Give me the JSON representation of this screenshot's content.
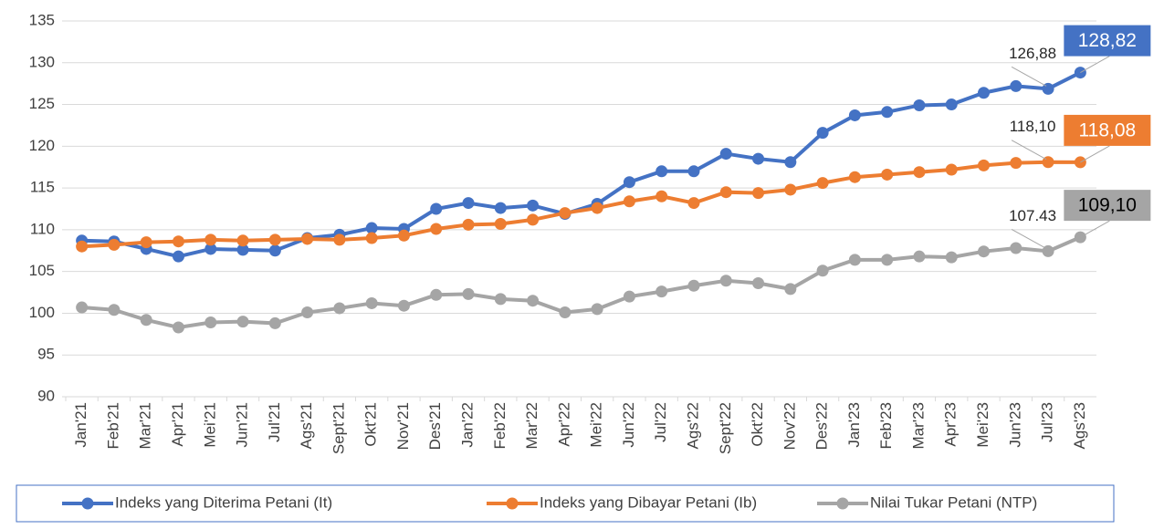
{
  "chart_data": {
    "type": "line",
    "categories": [
      "Jan'21",
      "Feb'21",
      "Mar'21",
      "Apr'21",
      "Mei'21",
      "Jun'21",
      "Jul'21",
      "Ags'21",
      "Sept'21",
      "Okt'21",
      "Nov'21",
      "Des'21",
      "Jan'22",
      "Feb'22",
      "Mar'22",
      "Apr'22",
      "Mei'22",
      "Jun'22",
      "Jul'22",
      "Ags'22",
      "Sept'22",
      "Okt'22",
      "Nov'22",
      "Des'22",
      "Jan'23",
      "Feb'23",
      "Mar'23",
      "Apr'23",
      "Mei'23",
      "Jun'23",
      "Jul'23",
      "Ags'23"
    ],
    "series": [
      {
        "name": "Indeks yang Diterima Petani (It)",
        "color": "#4472c4",
        "values": [
          108.7,
          108.6,
          107.7,
          106.8,
          107.7,
          107.6,
          107.5,
          109.0,
          109.4,
          110.2,
          110.1,
          112.5,
          113.2,
          112.6,
          112.9,
          111.9,
          113.1,
          115.7,
          117.0,
          117.0,
          119.1,
          118.5,
          118.1,
          121.6,
          123.7,
          124.1,
          124.9,
          125.0,
          126.4,
          127.2,
          126.88,
          128.82
        ],
        "value_labels": [
          null,
          null,
          null,
          null,
          null,
          null,
          null,
          null,
          null,
          null,
          null,
          null,
          null,
          null,
          null,
          null,
          null,
          null,
          null,
          null,
          null,
          null,
          null,
          null,
          null,
          null,
          null,
          null,
          null,
          null,
          "126,88",
          "128,82"
        ]
      },
      {
        "name": "Indeks yang Dibayar Petani (Ib)",
        "color": "#ed7d31",
        "values": [
          108.0,
          108.2,
          108.5,
          108.6,
          108.8,
          108.7,
          108.8,
          108.9,
          108.8,
          109.0,
          109.3,
          110.1,
          110.6,
          110.7,
          111.2,
          112.0,
          112.6,
          113.4,
          114.0,
          113.2,
          114.5,
          114.4,
          114.8,
          115.6,
          116.3,
          116.6,
          116.9,
          117.2,
          117.7,
          118.0,
          118.1,
          118.08
        ],
        "value_labels": [
          null,
          null,
          null,
          null,
          null,
          null,
          null,
          null,
          null,
          null,
          null,
          null,
          null,
          null,
          null,
          null,
          null,
          null,
          null,
          null,
          null,
          null,
          null,
          null,
          null,
          null,
          null,
          null,
          null,
          null,
          "118,10",
          "118,08"
        ]
      },
      {
        "name": "Nilai Tukar Petani (NTP)",
        "color": "#a5a5a5",
        "values": [
          100.7,
          100.4,
          99.2,
          98.3,
          98.9,
          99.0,
          98.8,
          100.1,
          100.6,
          101.2,
          100.9,
          102.2,
          102.3,
          101.7,
          101.5,
          100.1,
          100.5,
          102.0,
          102.6,
          103.3,
          103.9,
          103.6,
          102.9,
          105.1,
          106.4,
          106.4,
          106.8,
          106.7,
          107.4,
          107.8,
          107.43,
          109.1
        ],
        "value_labels": [
          null,
          null,
          null,
          null,
          null,
          null,
          null,
          null,
          null,
          null,
          null,
          null,
          null,
          null,
          null,
          null,
          null,
          null,
          null,
          null,
          null,
          null,
          null,
          null,
          null,
          null,
          null,
          null,
          null,
          null,
          "107.43",
          "109,10"
        ]
      }
    ],
    "ylim": [
      90,
      135
    ],
    "yticks": [
      90,
      95,
      100,
      105,
      110,
      115,
      120,
      125,
      130,
      135
    ],
    "grid": true,
    "legend": "bottom"
  }
}
